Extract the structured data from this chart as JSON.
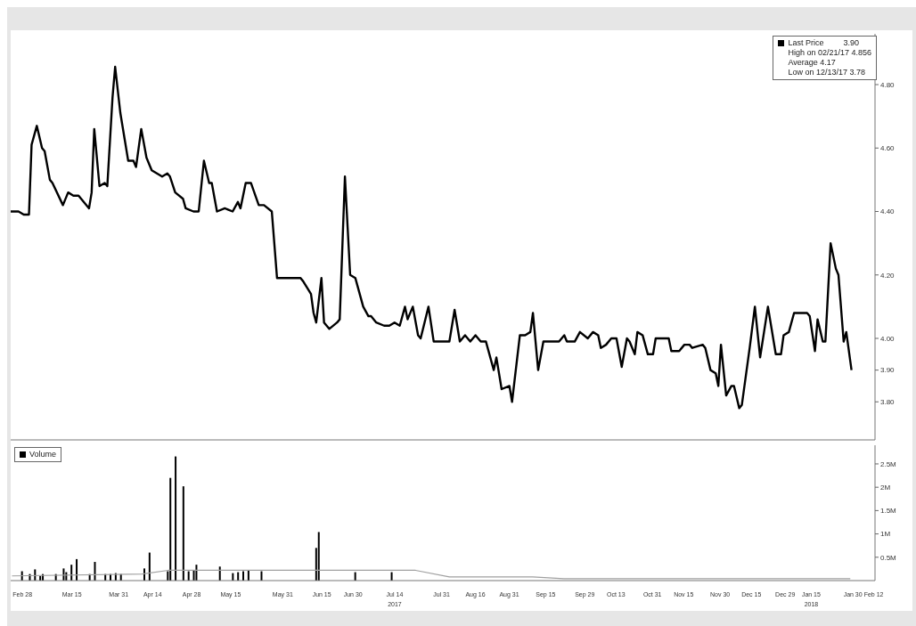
{
  "chart_data": [
    {
      "type": "line",
      "legend": "top right",
      "tick_labels": "y",
      "annotations": [
        "3.90",
        "High on 02/21/17 4.856",
        "Average 4.17",
        "Low on 12/13/17 3.78"
      ],
      "ylim": [
        3.68,
        4.96
      ],
      "yticks": [
        {
          "value": 3.8,
          "label": "3.80"
        },
        {
          "value": 3.9,
          "label": "3.90"
        },
        {
          "value": 4.0,
          "label": "4.00"
        },
        {
          "value": 4.2,
          "label": "4.20"
        },
        {
          "value": 4.4,
          "label": "4.40"
        },
        {
          "value": 4.6,
          "label": "4.60"
        },
        {
          "value": 4.8,
          "label": "4.80"
        }
      ],
      "categories": [
        null,
        null,
        null,
        null,
        null,
        null,
        null,
        null,
        null,
        null,
        null,
        null,
        null,
        null,
        null,
        null,
        null,
        null,
        null,
        null,
        null,
        null,
        null,
        null,
        null,
        null,
        null,
        null,
        null,
        null,
        null,
        null,
        null,
        null,
        null,
        null,
        null,
        null,
        null,
        null,
        null,
        null,
        null,
        null,
        null,
        null,
        null,
        null,
        null,
        null,
        null,
        null,
        null,
        null,
        null,
        null,
        null,
        null,
        null,
        null,
        null,
        null,
        null,
        null,
        null,
        null,
        null,
        null,
        null,
        null,
        null,
        null,
        null,
        null,
        null,
        null,
        null,
        null,
        null,
        null,
        null,
        null,
        null,
        null,
        null,
        null,
        null,
        null,
        null,
        null,
        null,
        null,
        null,
        null,
        null,
        null,
        null,
        null,
        null,
        null,
        null,
        null,
        null,
        null,
        null,
        null,
        null,
        null,
        null,
        null,
        null,
        null,
        null,
        null,
        null,
        null,
        null,
        null,
        null,
        null,
        null,
        null,
        null,
        null,
        null,
        null,
        null,
        null,
        null,
        null,
        null,
        null,
        null,
        null,
        null,
        null,
        null,
        null,
        null,
        null,
        null,
        null,
        null,
        null,
        null,
        null,
        null,
        null,
        null,
        null,
        null,
        null,
        null,
        null,
        null,
        null,
        null,
        null,
        null,
        null,
        null,
        null,
        null,
        null,
        null,
        null,
        null,
        null,
        null,
        null,
        null,
        null,
        null,
        null,
        null,
        null,
        null,
        null,
        null,
        null,
        null,
        null,
        null,
        null,
        null,
        null,
        null,
        null,
        null,
        null,
        null,
        null,
        null,
        null,
        null,
        null,
        null,
        null,
        null,
        null,
        null,
        null,
        null,
        null,
        null,
        null,
        null,
        null,
        null,
        null,
        null,
        null,
        null,
        null,
        null,
        null,
        null,
        null,
        null,
        null,
        null,
        null,
        null,
        null,
        null,
        null,
        null,
        null,
        null,
        null,
        null,
        null,
        null,
        null,
        null,
        null,
        null,
        null,
        null,
        null,
        null,
        null,
        null,
        null,
        null,
        null,
        null,
        null,
        null,
        null,
        null,
        null,
        null,
        null,
        null,
        null,
        null,
        null,
        null,
        null,
        null,
        null,
        null,
        null,
        null,
        null,
        null,
        null,
        null,
        null,
        null,
        null,
        null,
        null,
        null,
        null,
        null,
        null,
        null,
        null,
        null,
        null,
        null,
        null,
        null,
        null,
        null,
        null,
        null,
        null,
        null,
        null,
        null,
        null,
        null,
        null,
        null,
        null,
        null,
        null,
        null,
        null,
        null,
        null,
        null,
        null,
        null,
        null,
        null,
        null,
        null,
        null,
        null,
        null,
        null,
        null,
        null,
        null,
        null,
        null,
        null,
        null,
        null,
        null,
        null,
        null,
        null,
        null,
        null,
        null,
        null,
        null
      ],
      "series": [
        {
          "name": "Last Price",
          "color": "#000000",
          "values": [
            4.4,
            null,
            null,
            4.4,
            null,
            4.39,
            null,
            4.39,
            4.61,
            null,
            4.67,
            null,
            4.6,
            4.59,
            null,
            4.5,
            4.49,
            null,
            null,
            null,
            4.42,
            null,
            4.46,
            null,
            4.45,
            null,
            4.45,
            null,
            null,
            null,
            4.41,
            4.46,
            4.66,
            null,
            4.48,
            null,
            4.49,
            4.48,
            null,
            4.76,
            4.856,
            null,
            4.71,
            null,
            null,
            4.56,
            null,
            4.56,
            4.54,
            null,
            4.66,
            null,
            4.57,
            null,
            4.53,
            null,
            null,
            null,
            4.51,
            null,
            4.52,
            4.51,
            null,
            4.46,
            null,
            null,
            4.44,
            4.41,
            null,
            null,
            4.4,
            null,
            4.4,
            null,
            4.56,
            null,
            4.49,
            4.49,
            null,
            4.4,
            null,
            null,
            4.41,
            null,
            null,
            4.4,
            null,
            4.43,
            4.41,
            null,
            4.49,
            null,
            4.49,
            null,
            null,
            4.42,
            null,
            4.42,
            null,
            null,
            4.4,
            null,
            4.19,
            null,
            null,
            null,
            null,
            null,
            null,
            null,
            null,
            4.19,
            4.18,
            null,
            null,
            4.14,
            4.08,
            4.05,
            null,
            4.19,
            4.05,
            null,
            4.03,
            null,
            null,
            4.05,
            4.06,
            null,
            4.51,
            null,
            4.2,
            null,
            4.19,
            null,
            null,
            4.1,
            null,
            4.07,
            4.07,
            null,
            4.05,
            null,
            null,
            4.04,
            null,
            4.04,
            null,
            4.05,
            null,
            4.04,
            null,
            4.1,
            4.06,
            null,
            4.1,
            null,
            4.01,
            4.0,
            null,
            null,
            4.1,
            null,
            3.99,
            null,
            null,
            3.99,
            null,
            null,
            3.99,
            null,
            4.09,
            null,
            3.99,
            null,
            4.01,
            null,
            3.99,
            null,
            4.01,
            null,
            3.99,
            null,
            3.99,
            null,
            null,
            3.9,
            3.94,
            null,
            3.84,
            null,
            null,
            3.85,
            3.8,
            null,
            null,
            4.01,
            null,
            4.01,
            null,
            4.02,
            4.08,
            null,
            3.9,
            null,
            3.99,
            null,
            null,
            null,
            null,
            null,
            3.99,
            null,
            4.01,
            3.99,
            null,
            null,
            3.99,
            null,
            4.02,
            null,
            null,
            4.0,
            null,
            4.02,
            null,
            4.01,
            3.97,
            null,
            3.98,
            null,
            4.0,
            null,
            4.0,
            null,
            3.91,
            null,
            4.0,
            3.99,
            null,
            3.95,
            4.02,
            null,
            4.01,
            null,
            3.95,
            null,
            3.95,
            4.0,
            null,
            null,
            null,
            null,
            4.0,
            3.96,
            null,
            null,
            3.96,
            null,
            3.98,
            null,
            3.98,
            3.97,
            null,
            null,
            null,
            3.98,
            3.97,
            null,
            3.9,
            null,
            3.89,
            3.85,
            3.98,
            null,
            3.82,
            null,
            3.85,
            3.85,
            null,
            3.78,
            3.79,
            null,
            null,
            3.97,
            null,
            4.1,
            null,
            3.94,
            null,
            null,
            4.1,
            null,
            null,
            3.95,
            null,
            3.95,
            4.01,
            null,
            4.02,
            null,
            4.08,
            null,
            null,
            null,
            null,
            4.08,
            4.07,
            null,
            3.96,
            4.06,
            null,
            3.99,
            3.99,
            null,
            4.3,
            null,
            4.22,
            4.2,
            null,
            3.99,
            4.02,
            null,
            3.9,
            null,
            null,
            null,
            null,
            null,
            null,
            null,
            null,
            null
          ]
        }
      ]
    },
    {
      "type": "bar",
      "legend": "top left",
      "ylim": [
        0,
        2.9
      ],
      "yticks": [
        {
          "value": 0.5,
          "label": "0.5M"
        },
        {
          "value": 1,
          "label": "1M"
        },
        {
          "value": 1.5,
          "label": "1.5M"
        },
        {
          "value": 2,
          "label": "2M"
        },
        {
          "value": 2.5,
          "label": "2.5M"
        }
      ],
      "categories": [
        null,
        null,
        null,
        null,
        "Feb 28",
        null,
        null,
        null,
        null,
        null,
        null,
        null,
        null,
        null,
        null,
        null,
        null,
        null,
        null,
        null,
        null,
        null,
        null,
        "Mar 15",
        null,
        null,
        null,
        null,
        null,
        null,
        null,
        null,
        null,
        null,
        null,
        null,
        null,
        null,
        null,
        null,
        null,
        "Mar 31",
        null,
        null,
        null,
        null,
        null,
        null,
        null,
        null,
        null,
        null,
        null,
        null,
        "Apr 14",
        null,
        null,
        null,
        null,
        null,
        null,
        null,
        null,
        null,
        null,
        null,
        null,
        null,
        null,
        "Apr 28",
        null,
        null,
        null,
        null,
        null,
        null,
        null,
        null,
        null,
        null,
        null,
        null,
        null,
        null,
        "May 15",
        null,
        null,
        null,
        null,
        null,
        null,
        null,
        null,
        null,
        null,
        null,
        null,
        null,
        null,
        null,
        null,
        null,
        null,
        null,
        "May 31",
        null,
        null,
        null,
        null,
        null,
        null,
        null,
        null,
        null,
        null,
        null,
        null,
        null,
        null,
        "Jun 15",
        null,
        null,
        null,
        null,
        null,
        null,
        null,
        null,
        null,
        null,
        null,
        "Jun 30",
        null,
        null,
        null,
        null,
        null,
        null,
        null,
        null,
        null,
        null,
        null,
        null,
        null,
        null,
        null,
        "Jul 14\n2017",
        null,
        null,
        null,
        null,
        null,
        null,
        null,
        null,
        null,
        null,
        null,
        null,
        null,
        null,
        null,
        null,
        null,
        "Jul 31",
        null,
        null,
        null,
        null,
        null,
        null,
        null,
        null,
        null,
        null,
        null,
        null,
        "Aug 16",
        null,
        null,
        null,
        null,
        null,
        null,
        null,
        null,
        null,
        null,
        null,
        null,
        "Aug 31",
        null,
        null,
        null,
        null,
        null,
        null,
        null,
        null,
        null,
        null,
        null,
        null,
        null,
        "Sep 15",
        null,
        null,
        null,
        null,
        null,
        null,
        null,
        null,
        null,
        null,
        null,
        null,
        null,
        null,
        "Sep 29",
        null,
        null,
        null,
        null,
        null,
        null,
        null,
        null,
        null,
        null,
        null,
        "Oct 13",
        null,
        null,
        null,
        null,
        null,
        null,
        null,
        null,
        null,
        null,
        null,
        null,
        null,
        "Oct 31",
        null,
        null,
        null,
        null,
        null,
        null,
        null,
        null,
        null,
        null,
        null,
        "Nov 15",
        null,
        null,
        null,
        null,
        null,
        null,
        null,
        null,
        null,
        null,
        null,
        null,
        null,
        "Nov 30",
        null,
        null,
        null,
        null,
        null,
        null,
        null,
        null,
        null,
        null,
        null,
        "Dec 15",
        null,
        null,
        null,
        null,
        null,
        null,
        null,
        null,
        null,
        null,
        null,
        null,
        "Dec 29",
        null,
        null,
        null,
        null,
        null,
        null,
        null,
        null,
        null,
        "Jan 15\n2018",
        null,
        null,
        null,
        null,
        null,
        null,
        null,
        null,
        null,
        null,
        null,
        null,
        null,
        null,
        null,
        "Jan 30",
        null,
        null,
        null,
        null,
        null,
        null,
        null,
        "Feb 12"
      ],
      "series": [
        {
          "name": "Volume",
          "color": "#000000",
          "values": [
            null,
            null,
            null,
            null,
            0.2,
            null,
            null,
            0.14,
            null,
            0.24,
            null,
            0.1,
            0.14,
            null,
            null,
            null,
            null,
            0.14,
            null,
            null,
            0.26,
            0.18,
            null,
            0.34,
            null,
            0.46,
            null,
            null,
            null,
            null,
            0.14,
            null,
            0.4,
            null,
            null,
            null,
            0.14,
            null,
            0.14,
            null,
            0.16,
            null,
            0.14,
            null,
            null,
            null,
            null,
            null,
            null,
            null,
            null,
            0.26,
            null,
            0.6,
            null,
            null,
            null,
            null,
            null,
            null,
            0.2,
            2.2,
            null,
            2.66,
            null,
            null,
            2.02,
            null,
            0.2,
            null,
            0.22,
            0.34,
            null,
            null,
            null,
            null,
            null,
            null,
            null,
            null,
            0.3,
            null,
            null,
            null,
            null,
            0.16,
            null,
            0.18,
            null,
            0.2,
            null,
            0.22,
            null,
            null,
            null,
            null,
            0.2,
            null,
            null,
            null,
            null,
            null,
            null,
            null,
            null,
            null,
            null,
            null,
            null,
            null,
            null,
            null,
            null,
            null,
            null,
            null,
            null,
            0.7,
            1.04,
            null,
            null,
            null,
            null,
            null,
            null,
            null,
            null,
            null,
            null,
            null,
            null,
            null,
            0.18,
            null,
            null,
            null,
            null,
            null,
            null,
            null,
            null,
            null,
            null,
            null,
            null,
            null,
            0.18,
            null,
            null,
            null,
            null,
            null,
            null,
            null,
            null,
            null,
            null,
            null,
            null,
            null,
            null,
            null,
            null,
            null,
            null,
            null,
            null,
            null,
            null,
            null,
            null,
            null,
            null,
            null,
            null,
            null,
            null,
            null,
            null,
            null,
            null,
            null,
            null,
            null,
            null,
            null,
            null,
            null,
            null,
            null,
            null,
            null,
            null,
            null,
            null,
            null,
            null,
            null,
            null,
            null,
            null,
            null,
            null,
            null,
            null,
            null,
            null,
            null,
            null,
            null,
            null,
            null,
            null,
            null,
            null,
            null,
            null,
            null,
            null,
            null,
            null,
            null,
            null,
            null,
            null,
            null,
            null,
            null,
            null,
            null,
            null,
            null,
            null,
            null,
            null,
            null,
            null,
            null,
            null,
            null,
            null,
            null,
            null,
            null,
            null,
            null,
            null,
            null,
            null,
            null,
            null,
            null,
            null,
            null,
            null,
            null,
            null,
            null,
            null,
            null,
            null,
            null,
            null,
            null,
            null,
            null,
            null,
            null,
            null,
            null,
            null,
            null,
            null,
            null,
            null,
            null,
            null,
            null,
            null,
            null,
            null,
            null,
            null,
            null,
            null,
            null,
            null,
            null,
            null,
            null,
            null,
            null,
            null,
            null,
            null,
            null,
            null,
            null,
            null,
            null,
            null,
            null,
            null,
            null,
            null,
            null,
            null,
            null,
            null,
            null,
            null,
            null,
            null,
            null,
            null,
            null,
            null,
            null,
            null,
            null,
            null,
            null,
            null,
            null,
            null,
            null,
            null,
            null,
            null,
            null,
            null,
            null
          ]
        },
        {
          "type": "line",
          "color": "#a0a0a0",
          "values": [
            0.1,
            null,
            null,
            null,
            null,
            null,
            null,
            null,
            null,
            null,
            null,
            null,
            null,
            null,
            null,
            null,
            null,
            null,
            null,
            null,
            null,
            null,
            null,
            null,
            null,
            null,
            null,
            null,
            null,
            null,
            null,
            null,
            null,
            null,
            null,
            null,
            null,
            null,
            null,
            null,
            null,
            null,
            null,
            null,
            null,
            null,
            null,
            null,
            null,
            null,
            0.14,
            null,
            null,
            null,
            null,
            null,
            null,
            null,
            null,
            null,
            0.22,
            null,
            null,
            null,
            null,
            null,
            null,
            null,
            null,
            null,
            null,
            null,
            null,
            null,
            null,
            null,
            null,
            null,
            null,
            null,
            null,
            null,
            null,
            null,
            null,
            null,
            null,
            null,
            null,
            null,
            null,
            null,
            null,
            null,
            null,
            null,
            null,
            null,
            null,
            null,
            null,
            null,
            null,
            null,
            null,
            null,
            null,
            null,
            null,
            null,
            null,
            null,
            null,
            null,
            null,
            null,
            null,
            null,
            null,
            null,
            null,
            null,
            null,
            null,
            null,
            null,
            null,
            null,
            null,
            null,
            null,
            null,
            null,
            null,
            null,
            null,
            null,
            null,
            null,
            null,
            null,
            null,
            null,
            null,
            null,
            null,
            null,
            null,
            null,
            null,
            null,
            null,
            null,
            null,
            null,
            0.22,
            null,
            null,
            null,
            null,
            null,
            null,
            null,
            null,
            null,
            null,
            null,
            null,
            0.08,
            null,
            null,
            null,
            null,
            null,
            null,
            null,
            null,
            null,
            null,
            null,
            null,
            null,
            null,
            null,
            null,
            null,
            null,
            null,
            null,
            null,
            null,
            null,
            null,
            null,
            null,
            null,
            null,
            null,
            null,
            null,
            0.08,
            null,
            null,
            null,
            null,
            null,
            null,
            null,
            null,
            null,
            null,
            null,
            0.04,
            null,
            null,
            null,
            null,
            null,
            null,
            null,
            null,
            null,
            null,
            null,
            null,
            null,
            null,
            null,
            null,
            null,
            null,
            null,
            null,
            null,
            null,
            null,
            null,
            null,
            null,
            null,
            null,
            null,
            null,
            null,
            null,
            null,
            null,
            null,
            null,
            null,
            null,
            null,
            null,
            null,
            null,
            null,
            null,
            null,
            null,
            null,
            null,
            null,
            null,
            null,
            null,
            null,
            null,
            null,
            null,
            null,
            null,
            null,
            null,
            null,
            null,
            null,
            null,
            null,
            null,
            null,
            null,
            null,
            null,
            null,
            null,
            null,
            null,
            null,
            null,
            null,
            null,
            null,
            null,
            null,
            null,
            null,
            null,
            null,
            null,
            null,
            null,
            null,
            null,
            null,
            null,
            null,
            null,
            null,
            null,
            null,
            null,
            null,
            null,
            null,
            null,
            null,
            null,
            null,
            null,
            null,
            null,
            null,
            0.04,
            null,
            null,
            null,
            null,
            null,
            null,
            null,
            null,
            null
          ]
        }
      ]
    }
  ]
}
